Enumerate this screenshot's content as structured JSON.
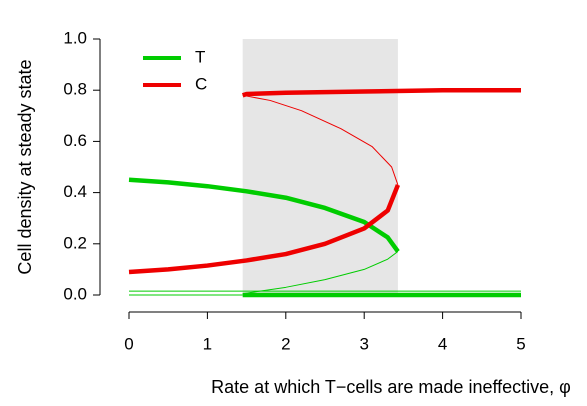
{
  "chart_data": {
    "type": "line",
    "xlabel": "Rate at which T−cells are made ineffective, φ",
    "ylabel": "Cell density at steady state",
    "xlim": [
      0,
      5
    ],
    "ylim": [
      0,
      1
    ],
    "xticks": [
      0,
      1,
      2,
      3,
      4,
      5
    ],
    "yticks": [
      {
        "value": 0,
        "label": "0.0"
      },
      {
        "value": 0.2,
        "label": "0.2"
      },
      {
        "value": 0.4,
        "label": "0.4"
      },
      {
        "value": 0.6,
        "label": "0.6"
      },
      {
        "value": 0.8,
        "label": "0.8"
      },
      {
        "value": 1,
        "label": "1.0"
      }
    ],
    "shade": {
      "xrange": [
        1.45,
        3.43
      ],
      "color": "#e6e6e6"
    },
    "legend": "top-left",
    "series": [
      {
        "name": "T",
        "color": "#00cc00",
        "branches": [
          {
            "stable": true,
            "x": [
              0,
              0.5,
              1,
              1.5,
              2,
              2.5,
              3,
              3.3,
              3.43
            ],
            "values": [
              0.45,
              0.44,
              0.425,
              0.405,
              0.38,
              0.34,
              0.285,
              0.225,
              0.17
            ]
          },
          {
            "stable": false,
            "x": [
              1.45,
              2,
              2.5,
              3,
              3.3,
              3.43
            ],
            "values": [
              0.005,
              0.03,
              0.06,
              0.1,
              0.14,
              0.17
            ]
          },
          {
            "stable": true,
            "x": [
              1.45,
              5
            ],
            "values": [
              0,
              0
            ]
          },
          {
            "stable": false,
            "x": [
              0,
              5
            ],
            "values": [
              0.015,
              0.015
            ]
          },
          {
            "stable": false,
            "x": [
              0,
              1.45
            ],
            "values": [
              0,
              0
            ]
          }
        ]
      },
      {
        "name": "C",
        "color": "#ee0000",
        "branches": [
          {
            "stable": true,
            "x": [
              0,
              0.5,
              1,
              1.5,
              2,
              2.5,
              3,
              3.3,
              3.43
            ],
            "values": [
              0.09,
              0.1,
              0.115,
              0.135,
              0.16,
              0.2,
              0.26,
              0.33,
              0.43
            ]
          },
          {
            "stable": false,
            "x": [
              3.43,
              3.35,
              3.1,
              2.7,
              2.2,
              1.8,
              1.45
            ],
            "values": [
              0.43,
              0.5,
              0.58,
              0.65,
              0.72,
              0.76,
              0.78
            ]
          },
          {
            "stable": true,
            "x": [
              1.45,
              1.5,
              2,
              3,
              4,
              5
            ],
            "values": [
              0.78,
              0.785,
              0.79,
              0.795,
              0.8,
              0.8
            ]
          }
        ]
      }
    ]
  }
}
